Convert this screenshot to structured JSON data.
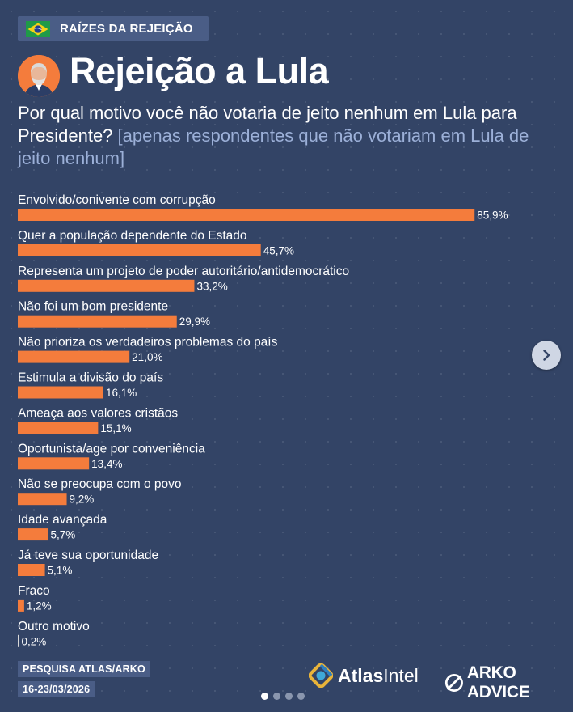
{
  "header": {
    "tag_label": "RAÍZES DA REJEIÇÃO",
    "title": "Rejeição a Lula",
    "question": "Por qual motivo você não votaria de jeito nenhum em Lula para Presidente?",
    "question_note": "[apenas respondentes que não votariam em Lula de jeito nenhum]"
  },
  "colors": {
    "background": "#334466",
    "bar": "#f47c3c",
    "tag_box": "#4a5d86",
    "note_text": "#9cb0d8"
  },
  "chart_data": {
    "type": "bar",
    "orientation": "horizontal",
    "categories": [
      "Envolvido/conivente com corrupção",
      "Quer a população dependente do Estado",
      "Representa um projeto de poder autoritário/antidemocrático",
      "Não foi um bom presidente",
      "Não prioriza os verdadeiros problemas do país",
      "Estimula a divisão do país",
      "Ameaça aos valores cristãos",
      "Oportunista/age por conveniência",
      "Não se preocupa com o povo",
      "Idade avançada",
      "Já teve sua oportunidade",
      "Fraco",
      "Outro motivo"
    ],
    "values": [
      85.9,
      45.7,
      33.2,
      29.9,
      21.0,
      16.1,
      15.1,
      13.4,
      9.2,
      5.7,
      5.1,
      1.2,
      0.2
    ],
    "value_labels": [
      "85,9%",
      "45,7%",
      "33,2%",
      "29,9%",
      "21,0%",
      "16,1%",
      "15,1%",
      "13,4%",
      "9,2%",
      "5,7%",
      "5,1%",
      "1,2%",
      "0,2%"
    ],
    "unit": "%",
    "xlim": [
      0,
      100
    ],
    "grid": false,
    "legend": "none"
  },
  "footer": {
    "source": "PESQUISA ATLAS/ARKO",
    "date": "16-23/03/2026",
    "logo_atlas_bold": "Atlas",
    "logo_atlas_light": "Intel",
    "logo_arko": "ARKO ADVICE"
  },
  "icons": {
    "flag": "brazil-flag-icon",
    "avatar": "lula-avatar",
    "next": "chevron-right-icon"
  },
  "pagination": {
    "current": 1,
    "total": 4
  }
}
